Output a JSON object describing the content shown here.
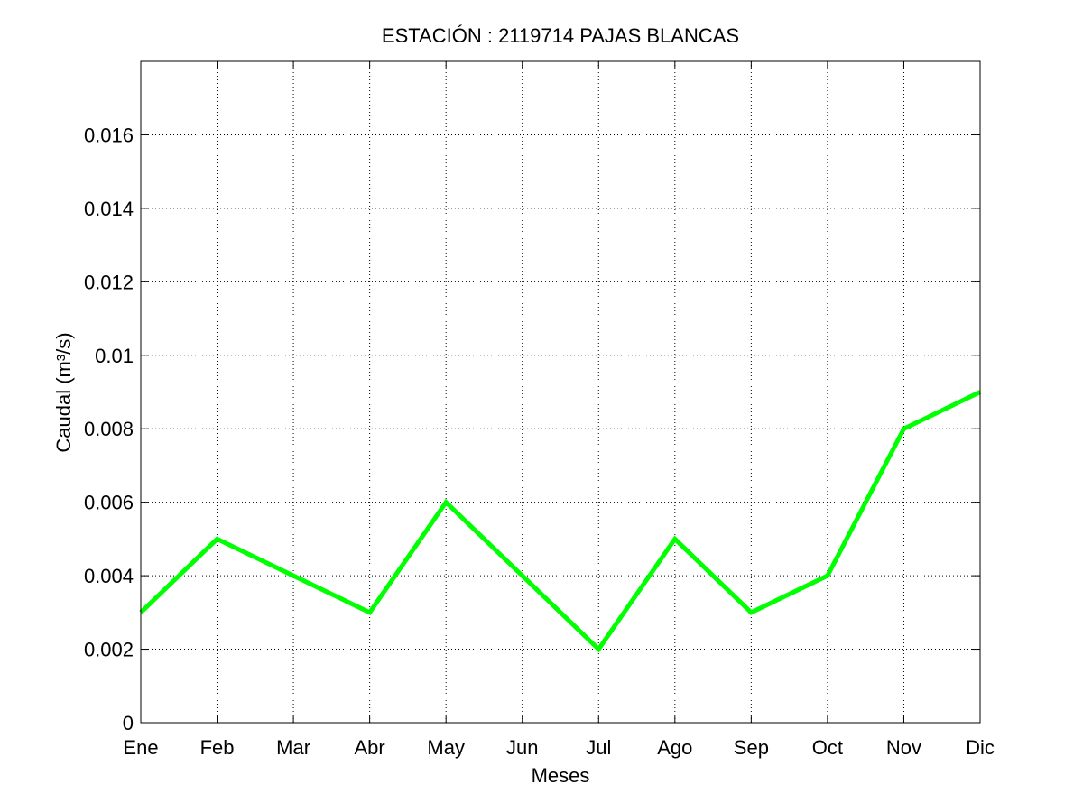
{
  "chart_data": {
    "type": "line",
    "title": "ESTACIÓN :  2119714  PAJAS BLANCAS",
    "xlabel": "Meses",
    "ylabel": "Caudal (m³/s)",
    "categories": [
      "Ene",
      "Feb",
      "Mar",
      "Abr",
      "May",
      "Jun",
      "Jul",
      "Ago",
      "Sep",
      "Oct",
      "Nov",
      "Dic"
    ],
    "series": [
      {
        "values": [
          0.003,
          0.005,
          0.004,
          0.003,
          0.006,
          0.004,
          0.002,
          0.005,
          0.003,
          0.004,
          0.008,
          0.009
        ],
        "color": "#00ff00"
      }
    ],
    "ylim": [
      0,
      0.018
    ],
    "yticks": [
      0,
      0.002,
      0.004,
      0.006,
      0.008,
      0.01,
      0.012,
      0.014,
      0.016
    ],
    "ytick_labels": [
      "0",
      "0.002",
      "0.004",
      "0.006",
      "0.008",
      "0.01",
      "0.012",
      "0.014",
      "0.016"
    ],
    "grid": true,
    "grid_style": "dotted"
  }
}
